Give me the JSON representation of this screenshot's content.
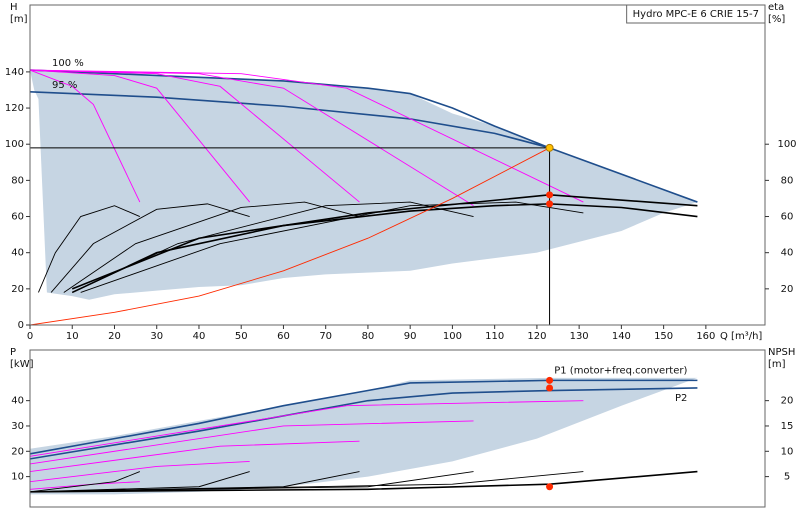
{
  "chart_data": [
    {
      "type": "line",
      "title": "Hydro MPC-E 6 CRIE 15-7",
      "xlabel": "Q [m³/h]",
      "ylabel": [
        "H",
        "[m]"
      ],
      "y2label": [
        "eta",
        "[%]"
      ],
      "xlim": [
        0,
        174
      ],
      "xticks": [
        0,
        10,
        20,
        30,
        40,
        50,
        60,
        70,
        80,
        90,
        100,
        110,
        120,
        130,
        140,
        150,
        160
      ],
      "ylim": [
        0,
        177
      ],
      "yticks": [
        0,
        20,
        40,
        60,
        80,
        100,
        120,
        140
      ],
      "y2lim": [
        0,
        177
      ],
      "y2ticks": [
        20,
        40,
        60,
        80,
        100
      ],
      "series": [
        {
          "style": "fill",
          "color": "#c6d5e3",
          "x": [
            1,
            0,
            20,
            40,
            60,
            80,
            90,
            100,
            110,
            123,
            158,
            150,
            140,
            120,
            100,
            90,
            70,
            60,
            50,
            40,
            30,
            20,
            14,
            10,
            4,
            2
          ],
          "values": [
            130,
            141,
            139,
            137,
            135,
            131,
            128,
            117,
            110,
            98,
            68,
            62,
            52,
            40,
            34,
            30,
            28,
            26,
            22,
            21,
            19,
            17,
            14,
            16,
            18,
            125
          ]
        },
        {
          "name": "100 %",
          "style": "bold",
          "color": "#1f4e8c",
          "x": [
            0,
            20,
            40,
            60,
            80,
            90,
            100,
            110,
            123,
            158
          ],
          "values": [
            141,
            139,
            137,
            135,
            131,
            128,
            120,
            110,
            98,
            68
          ]
        },
        {
          "name": "95 %",
          "style": "bold",
          "color": "#1f4e8c",
          "x": [
            0,
            30,
            60,
            90,
            110,
            123
          ],
          "values": [
            129,
            126,
            121,
            114,
            106,
            98
          ]
        },
        {
          "style": "thin",
          "color": "#ff00ff",
          "x": [
            0,
            10,
            15,
            26
          ],
          "values": [
            141,
            132,
            122,
            68
          ]
        },
        {
          "style": "thin",
          "color": "#ff00ff",
          "x": [
            0,
            20,
            30,
            52
          ],
          "values": [
            141,
            138,
            131,
            68
          ]
        },
        {
          "style": "thin",
          "color": "#ff00ff",
          "x": [
            0,
            30,
            45,
            78
          ],
          "values": [
            141,
            139,
            132,
            68
          ]
        },
        {
          "style": "thin",
          "color": "#ff00ff",
          "x": [
            0,
            40,
            60,
            105
          ],
          "values": [
            141,
            139,
            131,
            66
          ]
        },
        {
          "style": "thin",
          "color": "#ff00ff",
          "x": [
            0,
            50,
            75,
            131
          ],
          "values": [
            141,
            139,
            131,
            68
          ]
        },
        {
          "style": "thin",
          "color": "#000000",
          "axis": "y2",
          "x": [
            2,
            6,
            12,
            20,
            26
          ],
          "values": [
            18,
            40,
            60,
            66,
            60
          ]
        },
        {
          "style": "thin",
          "color": "#000000",
          "axis": "y2",
          "x": [
            5,
            15,
            30,
            42,
            52
          ],
          "values": [
            18,
            45,
            64,
            67,
            60
          ]
        },
        {
          "style": "thin",
          "color": "#000000",
          "axis": "y2",
          "x": [
            8,
            25,
            50,
            65,
            78
          ],
          "values": [
            18,
            45,
            65,
            68,
            60
          ]
        },
        {
          "style": "thin",
          "color": "#000000",
          "axis": "y2",
          "x": [
            10,
            35,
            70,
            90,
            105
          ],
          "values": [
            18,
            45,
            66,
            68,
            60
          ]
        },
        {
          "style": "thin",
          "color": "#000000",
          "axis": "y2",
          "x": [
            12,
            45,
            90,
            115,
            131
          ],
          "values": [
            18,
            45,
            66,
            68,
            62
          ]
        },
        {
          "style": "bold",
          "color": "#000000",
          "axis": "y2",
          "x": [
            10,
            30,
            60,
            90,
            110,
            123,
            140,
            158
          ],
          "values": [
            18,
            40,
            55,
            63,
            66,
            67,
            65,
            60
          ]
        },
        {
          "style": "bold",
          "color": "#000000",
          "axis": "y2",
          "x": [
            10,
            40,
            80,
            123,
            158
          ],
          "values": [
            20,
            48,
            62,
            72,
            66
          ]
        },
        {
          "style": "thin",
          "color": "#ff2a00",
          "x": [
            0,
            20,
            40,
            60,
            80,
            100,
            123
          ],
          "values": [
            0,
            7,
            16,
            30,
            48,
            70,
            98
          ]
        },
        {
          "style": "point",
          "color": "#ff2a00",
          "axis": "y2",
          "x": [
            123,
            123
          ],
          "values": [
            72,
            67
          ]
        },
        {
          "style": "duty",
          "color": "#ffc000",
          "x": [
            123
          ],
          "values": [
            98
          ]
        }
      ]
    },
    {
      "type": "line",
      "ylabel": [
        "P",
        "[kW]"
      ],
      "y2label": [
        "NPSH",
        "[m]"
      ],
      "xlim": [
        0,
        174
      ],
      "ylim": [
        -2,
        60
      ],
      "yticks": [
        10,
        20,
        30,
        40
      ],
      "y2lim": [
        -1,
        30
      ],
      "y2ticks": [
        5,
        10,
        15,
        20
      ],
      "series": [
        {
          "style": "fill",
          "color": "#c6d5e3",
          "x": [
            0,
            20,
            40,
            60,
            80,
            90,
            123,
            158,
            140,
            120,
            100,
            80,
            60,
            40,
            20,
            0
          ],
          "values": [
            21,
            26,
            32,
            38,
            44,
            48,
            49,
            49,
            38,
            25,
            16,
            10,
            6,
            4,
            3,
            3
          ]
        },
        {
          "name": "P1 (motor+freq.converter)",
          "style": "bold",
          "color": "#1f4e8c",
          "x": [
            0,
            20,
            40,
            60,
            80,
            90,
            123,
            158
          ],
          "values": [
            19,
            25,
            31,
            38,
            44,
            47,
            48,
            48
          ]
        },
        {
          "name": "P2",
          "style": "bold",
          "color": "#1f4e8c",
          "x": [
            0,
            40,
            80,
            100,
            123,
            158
          ],
          "values": [
            17,
            28,
            40,
            43,
            44,
            45
          ]
        },
        {
          "style": "thin",
          "color": "#ff00ff",
          "x": [
            0,
            15,
            26
          ],
          "values": [
            5,
            7,
            8
          ]
        },
        {
          "style": "thin",
          "color": "#ff00ff",
          "x": [
            0,
            30,
            52
          ],
          "values": [
            8,
            14,
            16
          ]
        },
        {
          "style": "thin",
          "color": "#ff00ff",
          "x": [
            0,
            45,
            78
          ],
          "values": [
            12,
            22,
            24
          ]
        },
        {
          "style": "thin",
          "color": "#ff00ff",
          "x": [
            0,
            60,
            105
          ],
          "values": [
            15,
            30,
            32
          ]
        },
        {
          "style": "thin",
          "color": "#ff00ff",
          "x": [
            0,
            75,
            131
          ],
          "values": [
            18,
            38,
            40
          ]
        },
        {
          "style": "thin",
          "color": "#000000",
          "axis": "y2",
          "x": [
            0,
            20,
            26
          ],
          "values": [
            2,
            4,
            6
          ]
        },
        {
          "style": "thin",
          "color": "#000000",
          "axis": "y2",
          "x": [
            0,
            40,
            52
          ],
          "values": [
            2,
            3,
            6
          ]
        },
        {
          "style": "thin",
          "color": "#000000",
          "axis": "y2",
          "x": [
            0,
            60,
            78
          ],
          "values": [
            2,
            3,
            6
          ]
        },
        {
          "style": "thin",
          "color": "#000000",
          "axis": "y2",
          "x": [
            0,
            80,
            105
          ],
          "values": [
            2,
            3,
            6
          ]
        },
        {
          "style": "thin",
          "color": "#000000",
          "axis": "y2",
          "x": [
            0,
            100,
            131
          ],
          "values": [
            2,
            3.5,
            6
          ]
        },
        {
          "style": "bold",
          "color": "#000000",
          "axis": "y2",
          "x": [
            0,
            80,
            123,
            158
          ],
          "values": [
            2,
            2.5,
            3.5,
            6
          ]
        },
        {
          "style": "point",
          "color": "#ff2a00",
          "x": [
            123,
            123
          ],
          "values": [
            48,
            45
          ]
        },
        {
          "style": "point",
          "color": "#ff2a00",
          "axis": "y2",
          "x": [
            123
          ],
          "values": [
            3
          ]
        }
      ]
    }
  ]
}
